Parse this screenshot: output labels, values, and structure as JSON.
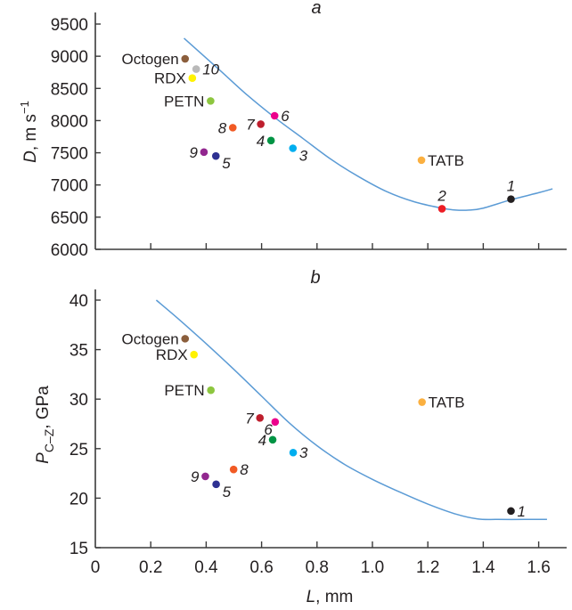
{
  "chart_data": [
    {
      "panel": "a",
      "type": "scatter",
      "title": "a",
      "xlabel_italic": "L",
      "xlabel_rest": ", mm",
      "ylabel_italic": "D",
      "ylabel_rest": ", m s",
      "ylabel_sup": "−1",
      "xlim": [
        0,
        1.7
      ],
      "ylim": [
        6000,
        9500
      ],
      "xticks": [
        "0",
        "0.2",
        "0.4",
        "0.6",
        "0.8",
        "1.0",
        "1.2",
        "1.4",
        "1.6"
      ],
      "xtick_values": [
        0,
        0.2,
        0.4,
        0.6,
        0.8,
        1.0,
        1.2,
        1.4,
        1.6
      ],
      "yticks": [
        "6000",
        "6500",
        "7000",
        "7500",
        "8000",
        "8500",
        "9000",
        "9500"
      ],
      "ytick_values": [
        6000,
        6500,
        7000,
        7500,
        8000,
        8500,
        9000,
        9500
      ],
      "grid": false,
      "curve": {
        "color": "#5b9bd5",
        "x": [
          0.32,
          0.45,
          0.55,
          0.65,
          0.75,
          0.85,
          0.95,
          1.05,
          1.15,
          1.25,
          1.3,
          1.35,
          1.4,
          1.5,
          1.6,
          1.65
        ],
        "y": [
          9280,
          8780,
          8390,
          8040,
          7720,
          7400,
          7130,
          6900,
          6740,
          6640,
          6610,
          6610,
          6640,
          6770,
          6880,
          6940
        ]
      },
      "points": [
        {
          "label": "Octogen",
          "x": 0.324,
          "y": 8960,
          "color": "#8b5e3c",
          "label_side": "left",
          "italic": false
        },
        {
          "label": "10",
          "x": 0.364,
          "y": 8800,
          "color": "#b9b9b9",
          "label_side": "right",
          "italic": true
        },
        {
          "label": "RDX",
          "x": 0.35,
          "y": 8660,
          "color": "#fff200",
          "label_side": "left",
          "italic": false
        },
        {
          "label": "PETN",
          "x": 0.416,
          "y": 8305,
          "color": "#8dc63f",
          "label_side": "left",
          "italic": false
        },
        {
          "label": "6",
          "x": 0.647,
          "y": 8075,
          "color": "#ec008c",
          "label_side": "right",
          "italic": true
        },
        {
          "label": "7",
          "x": 0.597,
          "y": 7945,
          "color": "#be1e2d",
          "label_side": "left",
          "italic": true
        },
        {
          "label": "8",
          "x": 0.496,
          "y": 7890,
          "color": "#f15a24",
          "label_side": "left",
          "italic": true
        },
        {
          "label": "4",
          "x": 0.634,
          "y": 7690,
          "color": "#009444",
          "label_side": "left",
          "italic": true
        },
        {
          "label": "3",
          "x": 0.713,
          "y": 7570,
          "color": "#00aeef",
          "label_side": "right-below",
          "italic": true
        },
        {
          "label": "9",
          "x": 0.392,
          "y": 7510,
          "color": "#92278f",
          "label_side": "left",
          "italic": true
        },
        {
          "label": "5",
          "x": 0.435,
          "y": 7450,
          "color": "#2e3192",
          "label_side": "right-below",
          "italic": true
        },
        {
          "label": "TATB",
          "x": 1.177,
          "y": 7385,
          "color": "#fbb040",
          "label_side": "right",
          "italic": false
        },
        {
          "label": "2",
          "x": 1.251,
          "y": 6630,
          "color": "#ed1c24",
          "label_side": "above",
          "italic": true
        },
        {
          "label": "1",
          "x": 1.5,
          "y": 6780,
          "color": "#231f20",
          "label_side": "above",
          "italic": true
        }
      ]
    },
    {
      "panel": "b",
      "type": "scatter",
      "title": "b",
      "xlabel_italic": "L",
      "xlabel_rest": ", mm",
      "ylabel_italic": "P",
      "ylabel_sub": "C–Z",
      "ylabel_rest": ", GPa",
      "xlim": [
        0,
        1.7
      ],
      "ylim": [
        15,
        40
      ],
      "xticks": [
        "0",
        "0.2",
        "0.4",
        "0.6",
        "0.8",
        "1.0",
        "1.2",
        "1.4",
        "1.6"
      ],
      "xtick_values": [
        0,
        0.2,
        0.4,
        0.6,
        0.8,
        1.0,
        1.2,
        1.4,
        1.6
      ],
      "yticks": [
        "15",
        "20",
        "25",
        "30",
        "35",
        "40"
      ],
      "ytick_values": [
        15,
        20,
        25,
        30,
        35,
        40
      ],
      "grid": false,
      "curve": {
        "color": "#5b9bd5",
        "x": [
          0.22,
          0.3,
          0.4,
          0.5,
          0.6,
          0.7,
          0.8,
          0.9,
          1.0,
          1.1,
          1.2,
          1.3,
          1.38,
          1.45,
          1.55,
          1.63
        ],
        "y": [
          40.0,
          38.1,
          35.6,
          33.0,
          30.3,
          27.6,
          25.3,
          23.4,
          21.9,
          20.6,
          19.4,
          18.4,
          17.9,
          17.85,
          17.85,
          17.85
        ]
      },
      "points": [
        {
          "label": "Octogen",
          "x": 0.324,
          "y": 36.1,
          "color": "#8b5e3c",
          "label_side": "left",
          "italic": false
        },
        {
          "label": "RDX",
          "x": 0.356,
          "y": 34.5,
          "color": "#fff200",
          "label_side": "left",
          "italic": false
        },
        {
          "label": "PETN",
          "x": 0.417,
          "y": 30.9,
          "color": "#8dc63f",
          "label_side": "left",
          "italic": false
        },
        {
          "label": "7",
          "x": 0.594,
          "y": 28.1,
          "color": "#be1e2d",
          "label_side": "left",
          "italic": true
        },
        {
          "label": "6",
          "x": 0.649,
          "y": 27.7,
          "color": "#ec008c",
          "label_side": "left-below",
          "italic": true
        },
        {
          "label": "4",
          "x": 0.64,
          "y": 25.9,
          "color": "#009444",
          "label_side": "left",
          "italic": true
        },
        {
          "label": "3",
          "x": 0.714,
          "y": 24.6,
          "color": "#00aeef",
          "label_side": "right",
          "italic": true
        },
        {
          "label": "8",
          "x": 0.499,
          "y": 22.9,
          "color": "#f15a24",
          "label_side": "right",
          "italic": true
        },
        {
          "label": "9",
          "x": 0.397,
          "y": 22.2,
          "color": "#92278f",
          "label_side": "left",
          "italic": true
        },
        {
          "label": "5",
          "x": 0.436,
          "y": 21.4,
          "color": "#2e3192",
          "label_side": "right-below",
          "italic": true
        },
        {
          "label": "TATB",
          "x": 1.179,
          "y": 29.7,
          "color": "#fbb040",
          "label_side": "right",
          "italic": false
        },
        {
          "label": "1",
          "x": 1.5,
          "y": 18.7,
          "color": "#231f20",
          "label_side": "right",
          "italic": true
        }
      ]
    }
  ]
}
